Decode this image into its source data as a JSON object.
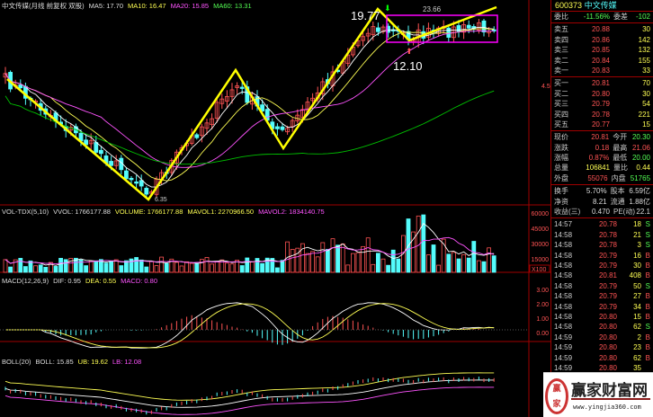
{
  "main_header": {
    "title": "中文传媒(月线 前复权 双股)",
    "ma5": "MA5: 17.70",
    "ma10": "MA10: 16.47",
    "ma20": "MA20: 15.85",
    "ma60": "MA60: 13.31"
  },
  "vol_header": {
    "name": "VOL-TDX(5,10)",
    "vvol": "VVOL: 1766177.88",
    "volume": "VOLUME: 1766177.88",
    "mavol1": "MAVOL1: 2270966.50",
    "mavol2": "MAVOL2: 1834140.75"
  },
  "macd_header": {
    "name": "MACD(12,26,9)",
    "dif": "DIF: 0.95",
    "dea": "DEA: 0.55",
    "macd": "MACD: 0.80"
  },
  "boll_header": {
    "name": "BOLL(20)",
    "boll": "BOLL: 15.85",
    "ub": "UB: 19.62",
    "lb": "LB: 12.08"
  },
  "annotations": {
    "high_label": "19.77",
    "low_label": "12.10",
    "peak_label": "23.66",
    "bottom_label": "6.35",
    "axis_mark": "4.51"
  },
  "axes": {
    "volume_ticks": [
      "60000",
      "45000",
      "30000",
      "15000"
    ],
    "volume_unit": "X100",
    "macd_ticks": [
      "3.00",
      "2.00",
      "1.00",
      "0.00"
    ]
  },
  "colors": {
    "up": "#ff5454",
    "down": "#54fcfc",
    "ma5": "#ffffff",
    "ma10": "#ffff54",
    "ma20": "#ff54ff",
    "ma60": "#00c000",
    "zigzag": "#ffff00",
    "box": "#ff00ff",
    "grid": "#a00000"
  },
  "quote": {
    "code": "600373",
    "name": "中文传媒",
    "weibi_label": "委比",
    "weibi": "-11.56%",
    "weicha_label": "委差",
    "weicha": "-102",
    "sell": [
      {
        "label": "卖五",
        "price": "20.88",
        "vol": "30"
      },
      {
        "label": "卖四",
        "price": "20.86",
        "vol": "142"
      },
      {
        "label": "卖三",
        "price": "20.85",
        "vol": "132"
      },
      {
        "label": "卖二",
        "price": "20.84",
        "vol": "155"
      },
      {
        "label": "卖一",
        "price": "20.83",
        "vol": "33"
      }
    ],
    "buy": [
      {
        "label": "买一",
        "price": "20.81",
        "vol": "70"
      },
      {
        "label": "买二",
        "price": "20.80",
        "vol": "30"
      },
      {
        "label": "买三",
        "price": "20.79",
        "vol": "54"
      },
      {
        "label": "买四",
        "price": "20.78",
        "vol": "221"
      },
      {
        "label": "买五",
        "price": "20.77",
        "vol": "15"
      }
    ],
    "stats": [
      {
        "l1": "现价",
        "v1": "20.81",
        "c1": "r",
        "l2": "今开",
        "v2": "20.30",
        "c2": "g"
      },
      {
        "l1": "涨跌",
        "v1": "0.18",
        "c1": "r",
        "l2": "最高",
        "v2": "21.06",
        "c2": "r"
      },
      {
        "l1": "涨幅",
        "v1": "0.87%",
        "c1": "r",
        "l2": "最低",
        "v2": "20.00",
        "c2": "g"
      },
      {
        "l1": "总量",
        "v1": "106841",
        "c1": "y",
        "l2": "量比",
        "v2": "0.44",
        "c2": "y"
      },
      {
        "l1": "外盘",
        "v1": "55076",
        "c1": "r",
        "l2": "内盘",
        "v2": "51765",
        "c2": "g"
      }
    ],
    "fund": [
      {
        "l1": "换手",
        "v1": "5.70%",
        "l2": "股本",
        "v2": "6.59亿"
      },
      {
        "l1": "净资",
        "v1": "8.21",
        "l2": "流通",
        "v2": "1.88亿"
      },
      {
        "l1": "收益(三)",
        "v1": "0.470",
        "l2": "PE(动)",
        "v2": "22.1"
      }
    ],
    "ticks": [
      {
        "t": "14:57",
        "p": "20.78",
        "q": "18",
        "s": "S"
      },
      {
        "t": "14:58",
        "p": "20.78",
        "q": "21",
        "s": "S"
      },
      {
        "t": "14:58",
        "p": "20.78",
        "q": "3",
        "s": "S"
      },
      {
        "t": "14:58",
        "p": "20.79",
        "q": "16",
        "s": "B"
      },
      {
        "t": "14:58",
        "p": "20.79",
        "q": "30",
        "s": "B"
      },
      {
        "t": "14:58",
        "p": "20.81",
        "q": "408",
        "s": "B"
      },
      {
        "t": "14:58",
        "p": "20.79",
        "q": "50",
        "s": "S"
      },
      {
        "t": "14:58",
        "p": "20.79",
        "q": "27",
        "s": "B"
      },
      {
        "t": "14:58",
        "p": "20.79",
        "q": "34",
        "s": "B"
      },
      {
        "t": "14:58",
        "p": "20.80",
        "q": "15",
        "s": "B"
      },
      {
        "t": "14:58",
        "p": "20.80",
        "q": "62",
        "s": "S"
      },
      {
        "t": "14:59",
        "p": "20.80",
        "q": "2",
        "s": "B"
      },
      {
        "t": "14:59",
        "p": "20.80",
        "q": "23",
        "s": "B"
      },
      {
        "t": "14:59",
        "p": "20.80",
        "q": "62",
        "s": "B"
      },
      {
        "t": "14:59",
        "p": "20.80",
        "q": "35",
        "s": ""
      },
      {
        "t": "14:59",
        "p": "20.81",
        "q": "10",
        "s": "B"
      },
      {
        "t": "14:59",
        "p": "20.80",
        "q": "10",
        "s": "S"
      },
      {
        "t": "14:59",
        "p": "20.80",
        "q": "12",
        "s": "S"
      },
      {
        "t": "14:59",
        "p": "20.81",
        "q": "15",
        "s": "B"
      }
    ]
  },
  "watermark": {
    "brand": "赢家财富网",
    "url": "www.yingjia360.com",
    "seal": "赢家"
  }
}
